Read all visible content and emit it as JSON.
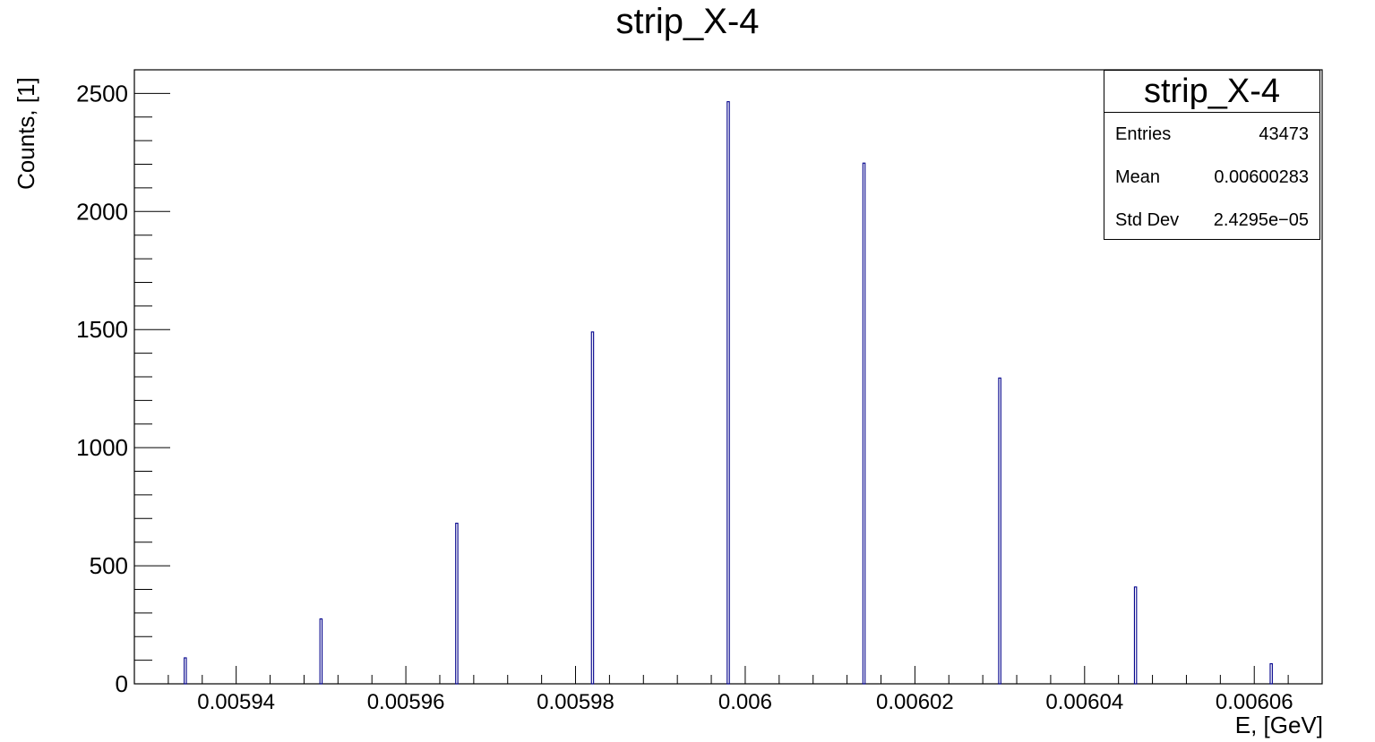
{
  "chart_data": {
    "type": "bar",
    "title": "strip_X-4",
    "xlabel": "E, [GeV]",
    "ylabel": "Counts, [1]",
    "xlim": [
      0.005928,
      0.006068
    ],
    "ylim": [
      0,
      2600
    ],
    "x_ticks": [
      0.00594,
      0.00596,
      0.00598,
      0.006,
      0.00602,
      0.00604,
      0.00606
    ],
    "x_tick_labels": [
      "0.00594",
      "0.00596",
      "0.00598",
      "0.006",
      "0.00602",
      "0.00604",
      "0.00606"
    ],
    "y_ticks": [
      0,
      500,
      1000,
      1500,
      2000,
      2500
    ],
    "y_tick_labels": [
      "0",
      "500",
      "1000",
      "1500",
      "2000",
      "2500"
    ],
    "x": [
      0.005934,
      0.00595,
      0.005966,
      0.005982,
      0.005998,
      0.006014,
      0.00603,
      0.006046,
      0.006062
    ],
    "values": [
      110,
      275,
      680,
      1490,
      2465,
      2205,
      1295,
      410,
      85
    ],
    "color": "#00008b",
    "stats": {
      "title": "strip_X-4",
      "rows": [
        {
          "label": "Entries",
          "value": "43473"
        },
        {
          "label": "Mean",
          "value": "0.00600283"
        },
        {
          "label": "Std Dev",
          "value": "2.4295e−05"
        }
      ]
    }
  }
}
